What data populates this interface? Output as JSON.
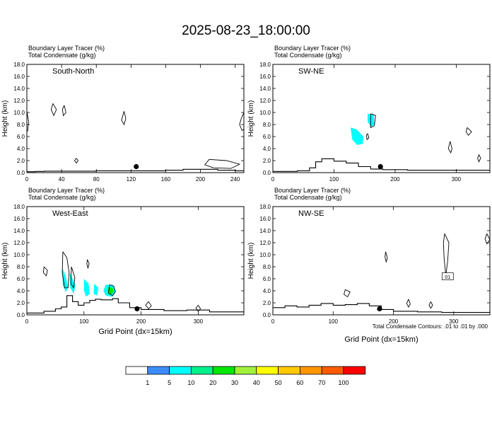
{
  "title": "2025-08-23_18:00:00",
  "chart_data": [
    {
      "type": "contour",
      "panel": "South-North",
      "label_line1": "Boundary Layer Tracer   (%)",
      "label_line2": "Total Condensate   (g/kg)",
      "ylabel": "Height (km)",
      "xlabel": "",
      "xlim": [
        0,
        250
      ],
      "ylim": [
        0,
        18
      ],
      "x_ticks": [
        0,
        40,
        80,
        120,
        160,
        200,
        240
      ],
      "y_ticks": [
        "0.0",
        "2.0",
        "4.0",
        "6.0",
        "8.0",
        "10.0",
        "12.0",
        "14.0",
        "16.0",
        "18.0"
      ],
      "terrain": [
        [
          0,
          0.15
        ],
        [
          10,
          0.2
        ],
        [
          20,
          0.25
        ],
        [
          40,
          0.25
        ],
        [
          80,
          0.3
        ],
        [
          120,
          0.3
        ],
        [
          160,
          0.4
        ],
        [
          180,
          0.55
        ],
        [
          200,
          0.55
        ],
        [
          220,
          0.4
        ],
        [
          240,
          0.3
        ],
        [
          250,
          0.3
        ]
      ],
      "marker": [
        126,
        1.0
      ],
      "tracer_regions": [],
      "condensate_contours": [
        [
          [
            0,
            10.2
          ],
          [
            2,
            8.5
          ],
          [
            1,
            7.0
          ],
          [
            0,
            6.8
          ]
        ],
        [
          [
            30,
            11.5
          ],
          [
            34,
            10.5
          ],
          [
            31,
            9.5
          ],
          [
            28,
            10.5
          ],
          [
            30,
            11.5
          ]
        ],
        [
          [
            43,
            11.2
          ],
          [
            45,
            10.0
          ],
          [
            42,
            9.5
          ],
          [
            41,
            10.5
          ],
          [
            43,
            11.2
          ]
        ],
        [
          [
            112,
            10.2
          ],
          [
            114,
            9.0
          ],
          [
            112,
            8.0
          ],
          [
            109,
            8.7
          ],
          [
            112,
            10.2
          ]
        ],
        [
          [
            250,
            10.0
          ],
          [
            247,
            9.0
          ],
          [
            245,
            8.0
          ],
          [
            248,
            7.0
          ],
          [
            250,
            7.2
          ]
        ],
        [
          [
            210,
            2.2
          ],
          [
            230,
            2.0
          ],
          [
            245,
            1.4
          ],
          [
            235,
            0.7
          ],
          [
            215,
            0.8
          ],
          [
            205,
            1.3
          ],
          [
            210,
            2.2
          ]
        ],
        [
          [
            57,
            2.4
          ],
          [
            59,
            2.0
          ],
          [
            57,
            1.6
          ],
          [
            55,
            2.0
          ],
          [
            57,
            2.4
          ]
        ]
      ]
    },
    {
      "type": "contour",
      "panel": "SW-NE",
      "label_line1": "Boundary Layer Tracer   (%)",
      "label_line2": "Total Condensate   (g/kg)",
      "ylabel": "Height (km)",
      "xlabel": "",
      "xlim": [
        0,
        355
      ],
      "ylim": [
        0,
        18
      ],
      "x_ticks": [
        0,
        100,
        200,
        300
      ],
      "y_ticks": [
        "0.0",
        "2.0",
        "4.0",
        "6.0",
        "8.0",
        "10.0",
        "12.0",
        "14.0",
        "16.0",
        "18.0"
      ],
      "terrain": [
        [
          0,
          0.2
        ],
        [
          40,
          0.3
        ],
        [
          60,
          0.8
        ],
        [
          70,
          1.8
        ],
        [
          80,
          2.3
        ],
        [
          100,
          1.9
        ],
        [
          120,
          1.6
        ],
        [
          140,
          1.0
        ],
        [
          160,
          0.6
        ],
        [
          180,
          0.5
        ],
        [
          220,
          0.4
        ],
        [
          260,
          0.4
        ],
        [
          300,
          0.4
        ],
        [
          340,
          0.4
        ],
        [
          355,
          0.4
        ]
      ],
      "marker": [
        176,
        1.0
      ],
      "tracer_regions": [
        {
          "level": 5,
          "points": [
            [
              127,
              7.5
            ],
            [
              137,
              7.2
            ],
            [
              148,
              6.0
            ],
            [
              147,
              4.8
            ],
            [
              138,
              4.6
            ],
            [
              130,
              5.5
            ],
            [
              127,
              7.5
            ]
          ]
        },
        {
          "level": 5,
          "points": [
            [
              155,
              9.8
            ],
            [
              165,
              9.6
            ],
            [
              166,
              8.0
            ],
            [
              160,
              7.6
            ],
            [
              155,
              8.5
            ],
            [
              155,
              9.8
            ]
          ]
        }
      ],
      "condensate_contours": [
        [
          [
            160,
            9.8
          ],
          [
            168,
            9.5
          ],
          [
            166,
            7.8
          ],
          [
            160,
            7.5
          ],
          [
            160,
            9.8
          ]
        ],
        [
          [
            155,
            6.5
          ],
          [
            157,
            5.8
          ],
          [
            154,
            5.5
          ],
          [
            153,
            6.2
          ],
          [
            155,
            6.5
          ]
        ],
        [
          [
            290,
            5.2
          ],
          [
            293,
            4.0
          ],
          [
            291,
            3.3
          ],
          [
            287,
            4.0
          ],
          [
            290,
            5.2
          ]
        ],
        [
          [
            318,
            7.5
          ],
          [
            325,
            6.8
          ],
          [
            320,
            6.2
          ],
          [
            316,
            6.8
          ],
          [
            318,
            7.5
          ]
        ],
        [
          [
            337,
            3.0
          ],
          [
            340,
            2.4
          ],
          [
            337,
            1.8
          ],
          [
            335,
            2.4
          ],
          [
            337,
            3.0
          ]
        ]
      ]
    },
    {
      "type": "contour",
      "panel": "West-East",
      "label_line1": "Boundary Layer Tracer   (%)",
      "label_line2": "Total Condensate   (g/kg)",
      "ylabel": "Height (km)",
      "xlabel": "Grid Point (dx=15km)",
      "xlim": [
        0,
        380
      ],
      "ylim": [
        0,
        18
      ],
      "x_ticks": [
        0,
        100,
        200,
        300
      ],
      "y_ticks": [
        "0.0",
        "2.0",
        "4.0",
        "6.0",
        "8.0",
        "10.0",
        "12.0",
        "14.0",
        "16.0",
        "18.0"
      ],
      "terrain": [
        [
          0,
          0.3
        ],
        [
          30,
          0.6
        ],
        [
          50,
          1.0
        ],
        [
          60,
          1.3
        ],
        [
          70,
          3.2
        ],
        [
          80,
          2.2
        ],
        [
          90,
          1.6
        ],
        [
          100,
          2.0
        ],
        [
          110,
          2.4
        ],
        [
          120,
          2.6
        ],
        [
          130,
          2.5
        ],
        [
          150,
          2.7
        ],
        [
          160,
          2.0
        ],
        [
          180,
          1.2
        ],
        [
          200,
          0.9
        ],
        [
          240,
          0.7
        ],
        [
          280,
          0.8
        ],
        [
          320,
          0.5
        ],
        [
          380,
          0.5
        ]
      ],
      "marker": [
        193,
        1.0
      ],
      "tracer_regions": [
        {
          "level": 5,
          "points": [
            [
              62,
              7.8
            ],
            [
              68,
              6.5
            ],
            [
              72,
              4.5
            ],
            [
              68,
              3.8
            ],
            [
              63,
              5.0
            ],
            [
              62,
              7.8
            ]
          ]
        },
        {
          "level": 5,
          "points": [
            [
              75,
              7.0
            ],
            [
              85,
              5.0
            ],
            [
              82,
              3.5
            ],
            [
              76,
              4.5
            ],
            [
              75,
              7.0
            ]
          ]
        },
        {
          "level": 5,
          "points": [
            [
              100,
              6.0
            ],
            [
              108,
              5.2
            ],
            [
              110,
              3.5
            ],
            [
              104,
              3.0
            ],
            [
              100,
              4.0
            ],
            [
              100,
              6.0
            ]
          ]
        },
        {
          "level": 5,
          "points": [
            [
              118,
              5.2
            ],
            [
              125,
              4.5
            ],
            [
              123,
              3.2
            ],
            [
              117,
              3.5
            ],
            [
              118,
              5.2
            ]
          ]
        },
        {
          "level": 5,
          "points": [
            [
              138,
              5.0
            ],
            [
              150,
              5.0
            ],
            [
              156,
              4.0
            ],
            [
              150,
              3.0
            ],
            [
              138,
              3.2
            ],
            [
              134,
              4.0
            ],
            [
              138,
              5.0
            ]
          ]
        },
        {
          "level": 20,
          "points": [
            [
              143,
              4.6
            ],
            [
              150,
              4.5
            ],
            [
              152,
              3.8
            ],
            [
              147,
              3.4
            ],
            [
              142,
              3.8
            ],
            [
              143,
              4.6
            ]
          ]
        }
      ],
      "condensate_contours": [
        [
          [
            63,
            10.5
          ],
          [
            70,
            9.5
          ],
          [
            74,
            7.0
          ],
          [
            72,
            4.5
          ],
          [
            66,
            4.5
          ],
          [
            62,
            7.0
          ],
          [
            63,
            10.5
          ]
        ],
        [
          [
            78,
            8.0
          ],
          [
            84,
            6.2
          ],
          [
            82,
            4.5
          ],
          [
            77,
            5.2
          ],
          [
            78,
            8.0
          ]
        ],
        [
          [
            30,
            8.0
          ],
          [
            36,
            7.4
          ],
          [
            34,
            6.5
          ],
          [
            29,
            7.0
          ],
          [
            30,
            8.0
          ]
        ],
        [
          [
            106,
            9.2
          ],
          [
            109,
            8.5
          ],
          [
            107,
            7.8
          ],
          [
            105,
            8.5
          ],
          [
            106,
            9.2
          ]
        ],
        [
          [
            145,
            5.0
          ],
          [
            152,
            4.8
          ],
          [
            155,
            3.8
          ],
          [
            150,
            3.2
          ],
          [
            143,
            3.6
          ],
          [
            145,
            5.0
          ]
        ],
        [
          [
            213,
            2.2
          ],
          [
            218,
            1.5
          ],
          [
            213,
            1.0
          ],
          [
            208,
            1.6
          ],
          [
            213,
            2.2
          ]
        ],
        [
          [
            300,
            1.6
          ],
          [
            304,
            1.0
          ],
          [
            300,
            0.6
          ],
          [
            296,
            1.1
          ],
          [
            300,
            1.6
          ]
        ]
      ]
    },
    {
      "type": "contour",
      "panel": "NW-SE",
      "label_line1": "Boundary Layer Tracer   (%)",
      "label_line2": "Total Condensate   (g/kg)",
      "ylabel": "Height (km)",
      "xlabel": "Grid Point (dx=15km)",
      "xlim": [
        0,
        360
      ],
      "ylim": [
        0,
        18
      ],
      "x_ticks": [
        0,
        100,
        200,
        300
      ],
      "y_ticks": [
        "0.0",
        "2.0",
        "4.0",
        "6.0",
        "8.0",
        "10.0",
        "12.0",
        "14.0",
        "16.0",
        "18.0"
      ],
      "terrain": [
        [
          0,
          1.2
        ],
        [
          20,
          1.5
        ],
        [
          40,
          1.3
        ],
        [
          60,
          1.6
        ],
        [
          80,
          1.9
        ],
        [
          100,
          1.6
        ],
        [
          120,
          1.7
        ],
        [
          140,
          1.9
        ],
        [
          160,
          1.5
        ],
        [
          180,
          0.9
        ],
        [
          200,
          0.6
        ],
        [
          240,
          0.5
        ],
        [
          280,
          0.4
        ],
        [
          320,
          0.4
        ],
        [
          360,
          0.4
        ]
      ],
      "marker": [
        177,
        1.0
      ],
      "tracer_regions": [],
      "condensate_contours": [
        [
          [
            285,
            13.5
          ],
          [
            292,
            12.0
          ],
          [
            290,
            9.0
          ],
          [
            287,
            6.5
          ],
          [
            284,
            9.5
          ],
          [
            283,
            12.0
          ],
          [
            285,
            13.5
          ]
        ],
        [
          [
            187,
            10.5
          ],
          [
            190,
            9.5
          ],
          [
            188,
            8.8
          ],
          [
            186,
            9.6
          ],
          [
            187,
            10.5
          ]
        ],
        [
          [
            120,
            4.2
          ],
          [
            128,
            3.8
          ],
          [
            124,
            3.0
          ],
          [
            118,
            3.4
          ],
          [
            120,
            4.2
          ]
        ],
        [
          [
            225,
            2.6
          ],
          [
            228,
            1.8
          ],
          [
            225,
            1.3
          ],
          [
            222,
            1.9
          ],
          [
            225,
            2.6
          ]
        ],
        [
          [
            262,
            2.2
          ],
          [
            265,
            1.6
          ],
          [
            262,
            1.1
          ],
          [
            259,
            1.6
          ],
          [
            262,
            2.2
          ]
        ],
        [
          [
            355,
            13.5
          ],
          [
            360,
            12.5
          ],
          [
            355,
            11.8
          ],
          [
            352,
            12.6
          ],
          [
            355,
            13.5
          ]
        ]
      ],
      "contour_label": "01"
    }
  ],
  "footnote": "Total Condensate Contours: .01 to .01 by .000",
  "colorbar": {
    "colors": [
      "#ffffff",
      "#3c8cff",
      "#00ffff",
      "#00f08c",
      "#00e600",
      "#a0f03c",
      "#ffff00",
      "#ffc800",
      "#ff9600",
      "#ff5a00",
      "#ff0000"
    ],
    "labels": [
      "1",
      "5",
      "10",
      "20",
      "30",
      "40",
      "50",
      "60",
      "70",
      "100"
    ]
  }
}
